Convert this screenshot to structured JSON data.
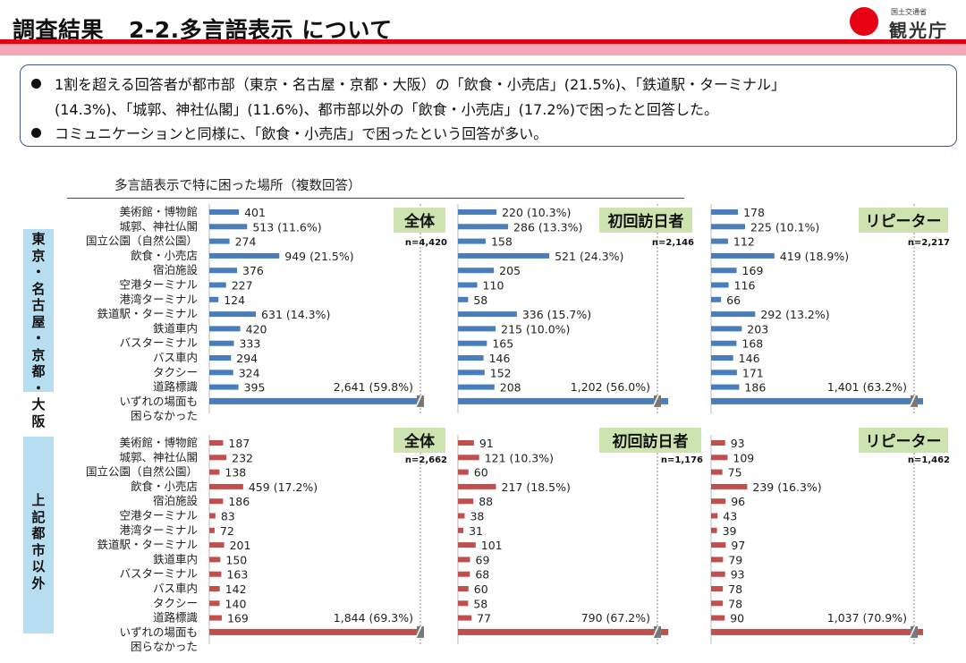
{
  "header": {
    "title_prefix": "調査結果",
    "title_main": "2-2.多言語表示 について",
    "logo_small": "国土交通省",
    "logo_big": "観光庁"
  },
  "colors": {
    "accent_red": "#e60012",
    "stripe_pink": "#f4a7b9",
    "bar_blue": "#4a7ebb",
    "bar_red": "#c0504d",
    "panel_green": "#cde4b0",
    "sidebar_blue": "#b7def0"
  },
  "summary": {
    "line1": "1割を超える回答者が都市部（東京・名古屋・京都・大阪）の「飲食・小売店」(21.5%)、「鉄道駅・ターミナル」",
    "line2": "(14.3%)、「城郭、神社仏閣」(11.6%)、都市部以外の「飲食・小売店」(17.2%)で困ったと回答した。",
    "line3": "コミュニケーションと同様に、「飲食・小売店」で困ったという回答が多い。"
  },
  "chart_title": "多言語表示で特に困った場所（複数回答）",
  "sidebar": {
    "top": "東京・名古屋・京都・大阪",
    "bottom": "上記都市以外"
  },
  "categories": [
    "美術館・博物館",
    "城郭、神社仏閣",
    "国立公園（自然公園）",
    "飲食・小売店",
    "宿泊施設",
    "空港ターミナル",
    "港湾ターミナル",
    "鉄道駅・ターミナル",
    "鉄道車内",
    "バスターミナル",
    "バス車内",
    "タクシー",
    "道路標識",
    "いずれの場面も困らなかった"
  ],
  "last_category_lines": [
    "いずれの場面も",
    "困らなかった"
  ],
  "chart_data": [
    {
      "type": "bar",
      "region": "東京・名古屋・京都・大阪",
      "group": "全体",
      "n": "n=4,420",
      "values": [
        401,
        513,
        274,
        949,
        376,
        227,
        124,
        631,
        420,
        333,
        294,
        324,
        395,
        2641
      ],
      "labels": [
        "401",
        "513 (11.6%)",
        "274",
        "949 (21.5%)",
        "376",
        "227",
        "124",
        "631 (14.3%)",
        "420",
        "333",
        "294",
        "324",
        "395",
        "2,641 (59.8%)"
      ]
    },
    {
      "type": "bar",
      "region": "東京・名古屋・京都・大阪",
      "group": "初回訪日者",
      "n": "n=2,146",
      "values": [
        220,
        286,
        158,
        521,
        205,
        110,
        58,
        336,
        215,
        165,
        146,
        152,
        208,
        1202
      ],
      "labels": [
        "220 (10.3%)",
        "286 (13.3%)",
        "158",
        "521 (24.3%)",
        "205",
        "110",
        "58",
        "336 (15.7%)",
        "215 (10.0%)",
        "165",
        "146",
        "152",
        "208",
        "1,202 (56.0%)"
      ]
    },
    {
      "type": "bar",
      "region": "東京・名古屋・京都・大阪",
      "group": "リピーター",
      "n": "n=2,217",
      "values": [
        178,
        225,
        112,
        419,
        169,
        116,
        66,
        292,
        203,
        168,
        146,
        171,
        186,
        1401
      ],
      "labels": [
        "178",
        "225 (10.1%)",
        "112",
        "419 (18.9%)",
        "169",
        "116",
        "66",
        "292 (13.2%)",
        "203",
        "168",
        "146",
        "171",
        "186",
        "1,401 (63.2%)"
      ]
    },
    {
      "type": "bar",
      "region": "上記都市以外",
      "group": "全体",
      "n": "n=2,662",
      "values": [
        187,
        232,
        138,
        459,
        186,
        83,
        72,
        201,
        150,
        163,
        142,
        140,
        169,
        1844
      ],
      "labels": [
        "187",
        "232",
        "138",
        "459 (17.2%)",
        "186",
        "83",
        "72",
        "201",
        "150",
        "163",
        "142",
        "140",
        "169",
        "1,844 (69.3%)"
      ]
    },
    {
      "type": "bar",
      "region": "上記都市以外",
      "group": "初回訪日者",
      "n": "n=1,176",
      "values": [
        91,
        121,
        60,
        217,
        88,
        38,
        31,
        101,
        69,
        68,
        60,
        58,
        77,
        790
      ],
      "labels": [
        "91",
        "121 (10.3%)",
        "60",
        "217 (18.5%)",
        "88",
        "38",
        "31",
        "101",
        "69",
        "68",
        "60",
        "58",
        "77",
        "790 (67.2%)"
      ]
    },
    {
      "type": "bar",
      "region": "上記都市以外",
      "group": "リピーター",
      "n": "n=1,462",
      "values": [
        93,
        109,
        75,
        239,
        96,
        43,
        39,
        97,
        79,
        93,
        78,
        78,
        90,
        1037
      ],
      "labels": [
        "93",
        "109",
        "75",
        "239 (16.3%)",
        "96",
        "43",
        "39",
        "97",
        "79",
        "93",
        "78",
        "78",
        "90",
        "1,037 (70.9%)"
      ]
    }
  ]
}
